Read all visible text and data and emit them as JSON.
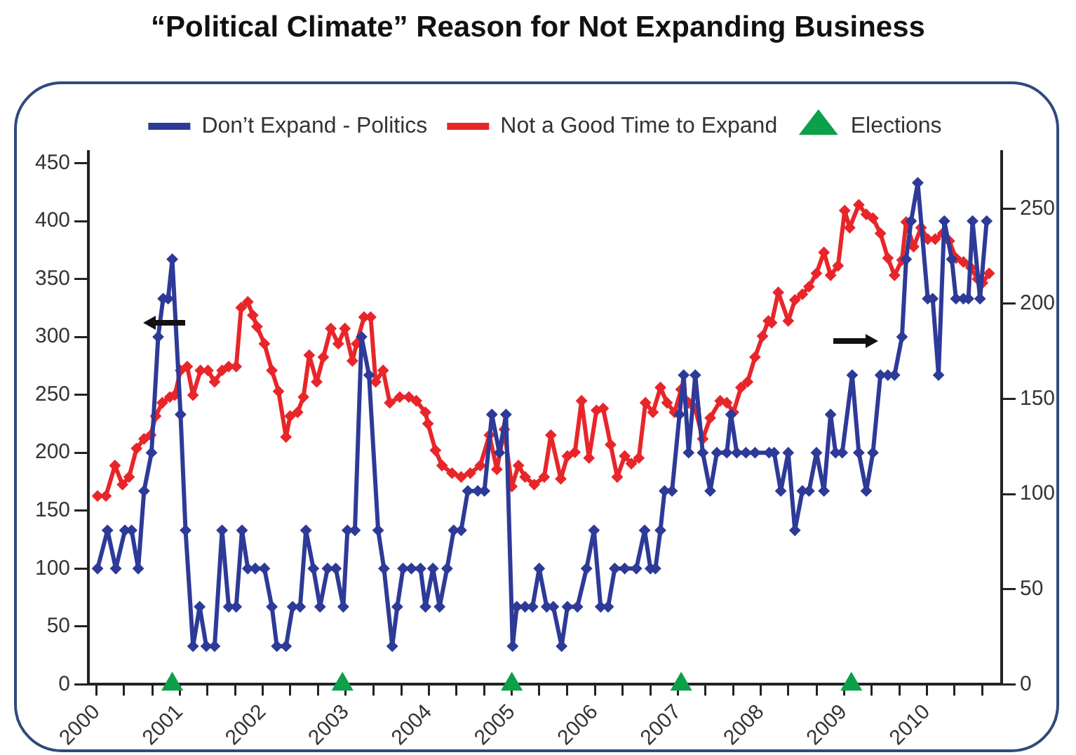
{
  "chart_data": {
    "type": "line",
    "title": "“Political Climate” Reason for Not Expanding Business",
    "legend": "top",
    "grid": false,
    "marker": "diamond",
    "line_style": "solid",
    "xlim": [
      1999.9,
      2010.9
    ],
    "xticks": [
      2000,
      {
        "value": 2000.33,
        "label": null
      },
      {
        "value": 2000.67,
        "label": null
      },
      2001,
      {
        "value": 2001.33,
        "label": null
      },
      {
        "value": 2001.67,
        "label": null
      },
      2002,
      {
        "value": 2002.33,
        "label": null
      },
      {
        "value": 2002.67,
        "label": null
      },
      2003,
      {
        "value": 2003.33,
        "label": null
      },
      {
        "value": 2003.67,
        "label": null
      },
      2004,
      {
        "value": 2004.33,
        "label": null
      },
      {
        "value": 2004.67,
        "label": null
      },
      2005,
      {
        "value": 2005.33,
        "label": null
      },
      {
        "value": 2005.67,
        "label": null
      },
      2006,
      {
        "value": 2006.33,
        "label": null
      },
      {
        "value": 2006.67,
        "label": null
      },
      2007,
      {
        "value": 2007.33,
        "label": null
      },
      {
        "value": 2007.67,
        "label": null
      },
      2008,
      {
        "value": 2008.33,
        "label": null
      },
      {
        "value": 2008.67,
        "label": null
      },
      2009,
      {
        "value": 2009.33,
        "label": null
      },
      {
        "value": 2009.67,
        "label": null
      },
      2010,
      {
        "value": 2010.33,
        "label": null
      },
      {
        "value": 2010.67,
        "label": null
      }
    ],
    "ylim": [
      0,
      460
    ],
    "yticks": [
      0,
      50,
      100,
      150,
      200,
      250,
      300,
      350,
      400,
      450
    ],
    "y2lim": [
      0,
      280
    ],
    "y2ticks": [
      0,
      50,
      100,
      150,
      200,
      250
    ],
    "series": [
      {
        "name": "Don’t Expand - Politics",
        "axis": "y",
        "color": "#2e3a97",
        "x": [
          2000.01,
          2000.13,
          2000.23,
          2000.34,
          2000.42,
          2000.5,
          2000.57,
          2000.66,
          2000.74,
          2000.8,
          2000.86,
          2000.91,
          2001.01,
          2001.07,
          2001.16,
          2001.24,
          2001.32,
          2001.42,
          2001.51,
          2001.59,
          2001.68,
          2001.75,
          2001.82,
          2001.91,
          2002.02,
          2002.11,
          2002.17,
          2002.28,
          2002.36,
          2002.45,
          2002.52,
          2002.61,
          2002.69,
          2002.78,
          2002.88,
          2002.97,
          2003.02,
          2003.11,
          2003.19,
          2003.28,
          2003.39,
          2003.46,
          2003.56,
          2003.62,
          2003.69,
          2003.79,
          2003.9,
          2003.96,
          2004.05,
          2004.13,
          2004.22,
          2004.3,
          2004.39,
          2004.47,
          2004.59,
          2004.67,
          2004.76,
          2004.85,
          2004.93,
          2005.01,
          2005.06,
          2005.16,
          2005.25,
          2005.33,
          2005.42,
          2005.5,
          2005.6,
          2005.67,
          2005.79,
          2005.9,
          2005.99,
          2006.07,
          2006.16,
          2006.24,
          2006.36,
          2006.5,
          2006.6,
          2006.67,
          2006.73,
          2006.79,
          2006.84,
          2006.93,
          2007.02,
          2007.07,
          2007.13,
          2007.21,
          2007.3,
          2007.39,
          2007.47,
          2007.59,
          2007.64,
          2007.71,
          2007.82,
          2007.93,
          2008.1,
          2008.16,
          2008.24,
          2008.33,
          2008.41,
          2008.5,
          2008.58,
          2008.67,
          2008.76,
          2008.84,
          2008.9,
          2008.98,
          2009.1,
          2009.18,
          2009.27,
          2009.35,
          2009.44,
          2009.53,
          2009.61,
          2009.7,
          2009.75,
          2009.81,
          2009.89,
          2010.01,
          2010.07,
          2010.14,
          2010.21,
          2010.3,
          2010.35,
          2010.44,
          2010.5,
          2010.55,
          2010.64,
          2010.72
        ],
        "values": [
          100,
          133,
          100,
          133,
          133,
          100,
          167,
          200,
          300,
          333,
          333,
          367,
          233,
          133,
          33,
          67,
          33,
          33,
          133,
          67,
          67,
          133,
          100,
          100,
          100,
          67,
          33,
          33,
          67,
          67,
          133,
          100,
          67,
          100,
          100,
          67,
          133,
          133,
          300,
          267,
          133,
          100,
          33,
          67,
          100,
          100,
          100,
          67,
          100,
          67,
          100,
          133,
          133,
          167,
          167,
          167,
          233,
          200,
          233,
          33,
          67,
          67,
          67,
          100,
          67,
          67,
          33,
          67,
          67,
          100,
          133,
          67,
          67,
          100,
          100,
          100,
          133,
          100,
          100,
          133,
          167,
          167,
          233,
          267,
          200,
          267,
          200,
          167,
          200,
          200,
          233,
          200,
          200,
          200,
          200,
          200,
          167,
          200,
          133,
          167,
          167,
          200,
          167,
          233,
          200,
          200,
          267,
          200,
          167,
          200,
          267,
          267,
          267,
          300,
          367,
          400,
          433,
          333,
          333,
          267,
          400,
          367,
          333,
          333,
          333,
          400,
          333,
          400
        ]
      },
      {
        "name": "Not a Good Time to Expand",
        "axis": "y2",
        "color": "#e8262a",
        "x": [
          2000.01,
          2000.11,
          2000.22,
          2000.31,
          2000.39,
          2000.48,
          2000.57,
          2000.65,
          2000.71,
          2000.79,
          2000.88,
          2000.94,
          2001.01,
          2001.09,
          2001.16,
          2001.25,
          2001.34,
          2001.42,
          2001.51,
          2001.59,
          2001.68,
          2001.74,
          2001.82,
          2001.88,
          2001.93,
          2002.02,
          2002.11,
          2002.19,
          2002.28,
          2002.33,
          2002.42,
          2002.49,
          2002.56,
          2002.65,
          2002.73,
          2002.82,
          2002.91,
          2002.99,
          2003.08,
          2003.13,
          2003.22,
          2003.3,
          2003.36,
          2003.45,
          2003.53,
          2003.65,
          2003.76,
          2003.85,
          2003.96,
          2003.99,
          2004.08,
          2004.16,
          2004.28,
          2004.39,
          2004.5,
          2004.62,
          2004.73,
          2004.82,
          2004.91,
          2005.0,
          2005.08,
          2005.16,
          2005.27,
          2005.39,
          2005.47,
          2005.59,
          2005.67,
          2005.76,
          2005.84,
          2005.93,
          2006.02,
          2006.1,
          2006.19,
          2006.27,
          2006.36,
          2006.44,
          2006.53,
          2006.61,
          2006.7,
          2006.79,
          2006.87,
          2006.96,
          2007.04,
          2007.13,
          2007.21,
          2007.3,
          2007.39,
          2007.51,
          2007.59,
          2007.67,
          2007.76,
          2007.84,
          2007.93,
          2008.02,
          2008.09,
          2008.13,
          2008.21,
          2008.33,
          2008.41,
          2008.5,
          2008.58,
          2008.67,
          2008.76,
          2008.84,
          2008.93,
          2009.01,
          2009.07,
          2009.18,
          2009.27,
          2009.35,
          2009.44,
          2009.53,
          2009.61,
          2009.7,
          2009.75,
          2009.84,
          2009.93,
          2010.01,
          2010.1,
          2010.19,
          2010.27,
          2010.35,
          2010.44,
          2010.53,
          2010.61,
          2010.67,
          2010.75
        ],
        "values": [
          99,
          99,
          115,
          105,
          109,
          124,
          129,
          131,
          141,
          148,
          151,
          152,
          165,
          167,
          152,
          165,
          165,
          159,
          165,
          167,
          167,
          198,
          201,
          194,
          188,
          179,
          165,
          154,
          130,
          141,
          143,
          151,
          173,
          159,
          172,
          187,
          179,
          187,
          170,
          179,
          193,
          193,
          159,
          165,
          148,
          151,
          151,
          149,
          143,
          137,
          123,
          115,
          111,
          109,
          111,
          115,
          131,
          113,
          134,
          104,
          115,
          109,
          105,
          109,
          131,
          108,
          120,
          122,
          149,
          119,
          144,
          145,
          126,
          109,
          120,
          116,
          119,
          148,
          143,
          156,
          148,
          143,
          155,
          148,
          145,
          129,
          140,
          149,
          148,
          143,
          156,
          159,
          172,
          183,
          191,
          190,
          206,
          191,
          202,
          205,
          209,
          216,
          227,
          215,
          220,
          249,
          240,
          252,
          247,
          245,
          237,
          224,
          215,
          223,
          243,
          230,
          240,
          234,
          234,
          237,
          233,
          224,
          222,
          219,
          213,
          211,
          216
        ]
      },
      {
        "name": "Elections",
        "type": "scatter",
        "axis": "y",
        "marker": "triangle",
        "color": "#0da04b",
        "x": [
          2000.91,
          2002.96,
          2005.0,
          2007.04,
          2009.09
        ],
        "values": [
          0,
          0,
          0,
          0,
          0
        ]
      }
    ]
  }
}
